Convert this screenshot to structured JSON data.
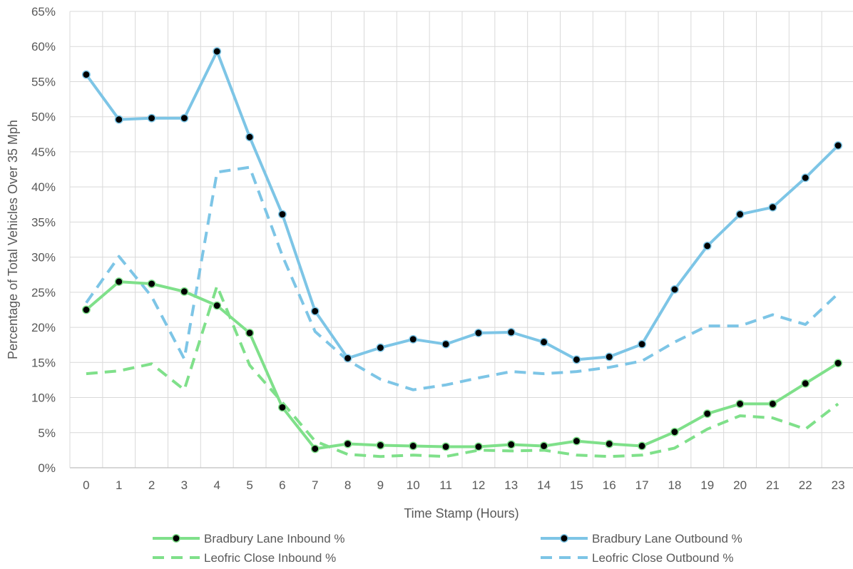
{
  "chart_data": {
    "type": "line",
    "title": "",
    "xlabel": "Time Stamp (Hours)",
    "ylabel": "Percentage of Total Vehicles Over 35 Mph",
    "ylim": [
      0,
      65
    ],
    "y_ticks": [
      0,
      5,
      10,
      15,
      20,
      25,
      30,
      35,
      40,
      45,
      50,
      55,
      60,
      65
    ],
    "y_tick_labels": [
      "0%",
      "5%",
      "10%",
      "15%",
      "20%",
      "25%",
      "30%",
      "35%",
      "40%",
      "45%",
      "50%",
      "55%",
      "60%",
      "65%"
    ],
    "x": [
      0,
      1,
      2,
      3,
      4,
      5,
      6,
      7,
      8,
      9,
      10,
      11,
      12,
      13,
      14,
      15,
      16,
      17,
      18,
      19,
      20,
      21,
      22,
      23
    ],
    "grid": true,
    "legend_position": "bottom",
    "series": [
      {
        "name": "Bradbury Lane Inbound %",
        "color": "#7FE08A",
        "dash": "solid",
        "markers": true,
        "values": [
          22.5,
          26.5,
          26.2,
          25.1,
          23.1,
          19.2,
          8.6,
          2.7,
          3.4,
          3.2,
          3.1,
          3.0,
          3.0,
          3.3,
          3.1,
          3.8,
          3.4,
          3.1,
          5.1,
          7.7,
          9.1,
          9.1,
          12.0,
          14.9
        ]
      },
      {
        "name": "Bradbury Lane Outbound %",
        "color": "#7DC5E6",
        "dash": "solid",
        "markers": true,
        "values": [
          56.0,
          49.6,
          49.8,
          49.8,
          59.3,
          47.1,
          36.1,
          22.3,
          15.6,
          17.1,
          18.3,
          17.6,
          19.2,
          19.3,
          17.9,
          15.4,
          15.8,
          17.6,
          25.4,
          31.6,
          36.1,
          37.1,
          41.3,
          45.9
        ]
      },
      {
        "name": "Leofric Close Inbound %",
        "color": "#7FE08A",
        "dash": "dashed",
        "markers": false,
        "values": [
          13.4,
          13.8,
          14.8,
          11.1,
          25.9,
          14.6,
          9.3,
          3.8,
          1.9,
          1.6,
          1.8,
          1.6,
          2.5,
          2.4,
          2.5,
          1.8,
          1.6,
          1.8,
          2.8,
          5.5,
          7.4,
          7.1,
          5.5,
          9.1
        ]
      },
      {
        "name": "Leofric Close Outbound %",
        "color": "#7DC5E6",
        "dash": "dashed",
        "markers": false,
        "values": [
          23.5,
          30.1,
          24.4,
          15.5,
          42.1,
          42.8,
          30.2,
          19.4,
          15.3,
          12.6,
          11.1,
          11.8,
          12.8,
          13.7,
          13.4,
          13.7,
          14.3,
          15.2,
          17.9,
          20.2,
          20.2,
          21.8,
          20.4,
          24.8
        ]
      }
    ]
  }
}
